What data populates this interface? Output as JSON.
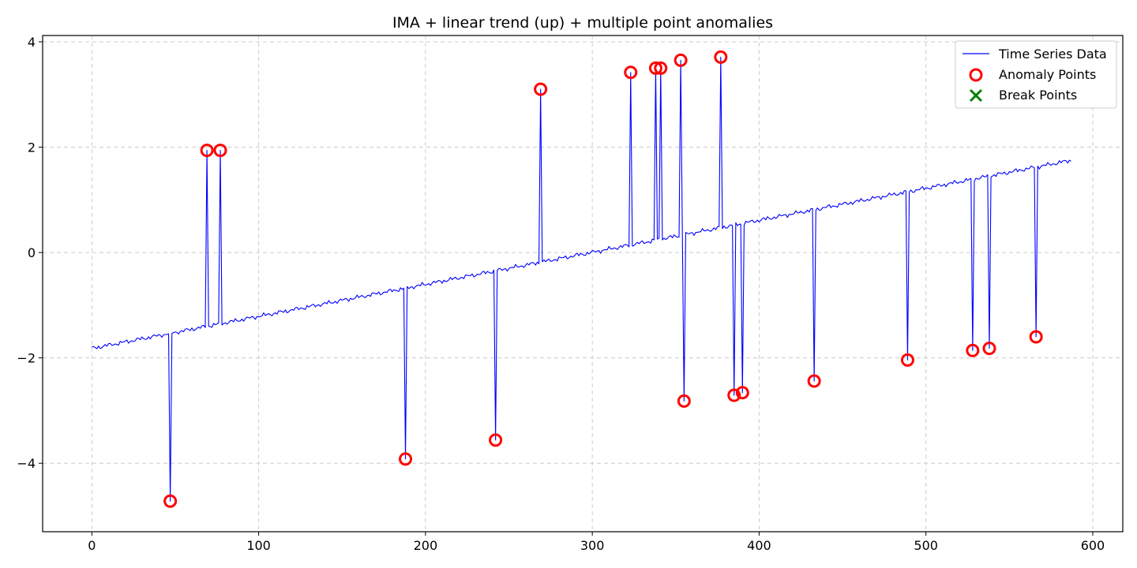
{
  "chart_data": {
    "type": "line",
    "title": "IMA + linear trend (up) + multiple point anomalies",
    "xlabel": "",
    "ylabel": "",
    "xlim": [
      -29.5,
      618
    ],
    "ylim": [
      -5.3,
      4.12
    ],
    "x_ticks": [
      0,
      100,
      200,
      300,
      400,
      500,
      600
    ],
    "y_ticks": [
      -4,
      -2,
      0,
      2,
      4
    ],
    "x_tick_labels": [
      "0",
      "100",
      "200",
      "300",
      "400",
      "500",
      "600"
    ],
    "y_tick_labels": [
      "−4",
      "−2",
      "0",
      "2",
      "4"
    ],
    "grid": true,
    "legend_position": "upper-right",
    "series": [
      {
        "name": "Time Series Data",
        "kind": "line",
        "color": "#0000ff",
        "trend": {
          "x_start": 0,
          "y_start": -1.82,
          "x_end": 587,
          "y_end": 1.75,
          "n_points": 588
        },
        "anomalies": [
          {
            "x": 47,
            "y": -4.72
          },
          {
            "x": 69,
            "y": 1.94
          },
          {
            "x": 77,
            "y": 1.94
          },
          {
            "x": 188,
            "y": -3.92
          },
          {
            "x": 242,
            "y": -3.56
          },
          {
            "x": 269,
            "y": 3.1
          },
          {
            "x": 323,
            "y": 3.42
          },
          {
            "x": 338,
            "y": 3.5
          },
          {
            "x": 341,
            "y": 3.5
          },
          {
            "x": 353,
            "y": 3.65
          },
          {
            "x": 355,
            "y": -2.82
          },
          {
            "x": 377,
            "y": 3.71
          },
          {
            "x": 385,
            "y": -2.71
          },
          {
            "x": 390,
            "y": -2.66
          },
          {
            "x": 433,
            "y": -2.44
          },
          {
            "x": 489,
            "y": -2.04
          },
          {
            "x": 528,
            "y": -1.86
          },
          {
            "x": 538,
            "y": -1.82
          },
          {
            "x": 566,
            "y": -1.6
          }
        ]
      },
      {
        "name": "Anomaly Points",
        "kind": "scatter-circle",
        "color": "#ff0000"
      },
      {
        "name": "Break Points",
        "kind": "scatter-x",
        "color": "#008000",
        "points": []
      }
    ]
  }
}
